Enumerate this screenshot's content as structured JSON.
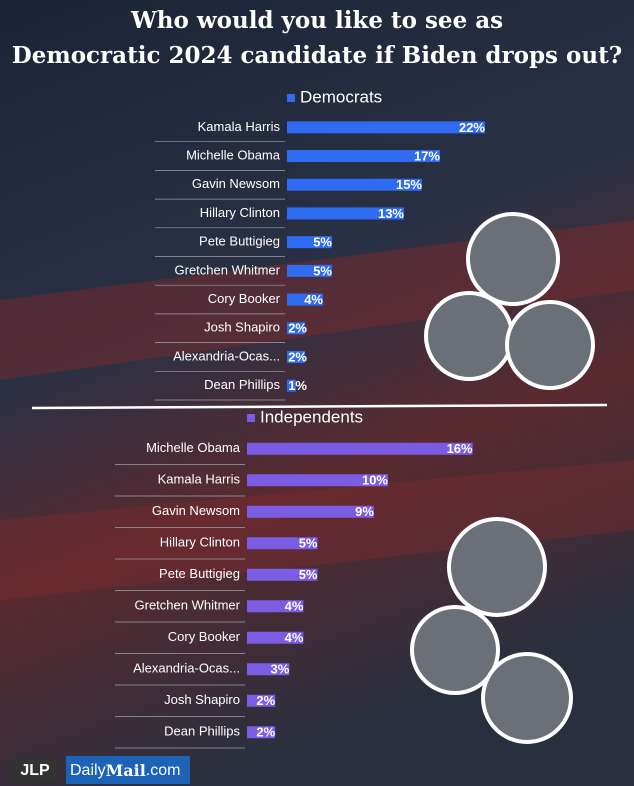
{
  "title": "Who would you like to see as Democratic 2024 candidate if Biden drops out?",
  "branding": {
    "jlp": "JLP",
    "daily": "Daily",
    "mail": "Mail",
    "com": ".com"
  },
  "chart_data": [
    {
      "type": "bar",
      "orientation": "horizontal",
      "categories": [
        "Kamala Harris",
        "Michelle Obama",
        "Gavin Newsom",
        "Hillary Clinton",
        "Pete Buttigieg",
        "Gretchen Whitmer",
        "Cory Booker",
        "Josh Shapiro",
        "Alexandria-Ocas...",
        "Dean Phillips"
      ],
      "series": [
        {
          "name": "Democrats",
          "color": "#2f6cf2",
          "values": [
            22,
            17,
            15,
            13,
            5,
            5,
            4,
            2,
            2,
            1
          ],
          "value_labels": [
            "22%",
            "17%",
            "15%",
            "13%",
            "5%",
            "5%",
            "4%",
            "2%",
            "2%",
            "1%"
          ]
        }
      ]
    },
    {
      "type": "bar",
      "orientation": "horizontal",
      "categories": [
        "Michelle Obama",
        "Kamala Harris",
        "Gavin Newsom",
        "Hillary Clinton",
        "Pete Buttigieg",
        "Gretchen Whitmer",
        "Cory Booker",
        "Alexandria-Ocas...",
        "Josh Shapiro",
        "Dean Phillips"
      ],
      "series": [
        {
          "name": "Independents",
          "color": "#7b5de3",
          "values": [
            16,
            10,
            9,
            5,
            5,
            4,
            4,
            3,
            2,
            2
          ],
          "value_labels": [
            "16%",
            "10%",
            "9%",
            "5%",
            "5%",
            "4%",
            "4%",
            "3%",
            "2%",
            "2%"
          ]
        }
      ]
    }
  ]
}
